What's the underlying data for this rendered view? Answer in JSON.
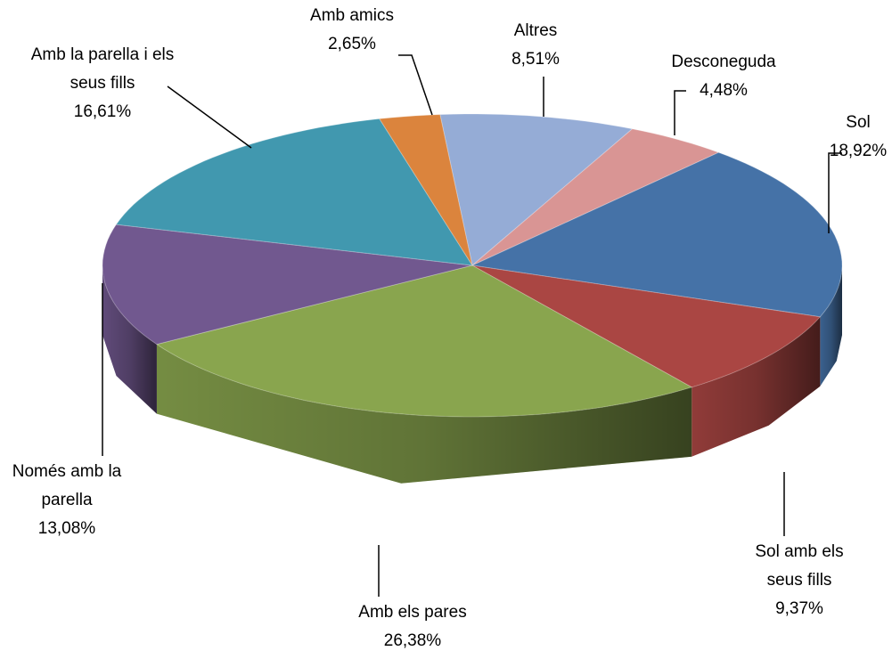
{
  "chart_data": {
    "type": "pie",
    "categories": [
      "Altres",
      "Desconeguda",
      "Sol",
      "Sol amb els seus fills",
      "Amb els pares",
      "Només amb la parella",
      "Amb la parella i els seus fills",
      "Amb amics"
    ],
    "values": [
      8.51,
      4.48,
      18.92,
      9.37,
      26.38,
      13.08,
      16.61,
      2.65
    ],
    "value_labels": [
      "8,51%",
      "4,48%",
      "18,92%",
      "9,37%",
      "26,38%",
      "13,08%",
      "16,61%",
      "2,65%"
    ],
    "colors": [
      "#95acd6",
      "#d99594",
      "#4572a7",
      "#aa4643",
      "#89a54e",
      "#71588f",
      "#4198af",
      "#db843d"
    ]
  }
}
